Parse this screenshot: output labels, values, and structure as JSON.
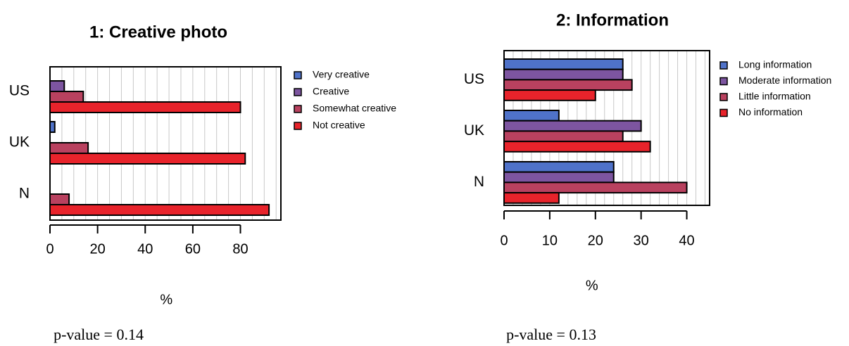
{
  "chart_data": [
    {
      "type": "bar",
      "orientation": "horizontal",
      "title": "1: Creative photo",
      "xlabel": "%",
      "annotation": "p-value = 0.14",
      "categories": [
        "US",
        "UK",
        "N"
      ],
      "series": [
        {
          "name": "Very creative",
          "color": "#4f72c9",
          "values": [
            0,
            2,
            0
          ]
        },
        {
          "name": "Creative",
          "color": "#7d55a0",
          "values": [
            6,
            0,
            0
          ]
        },
        {
          "name": "Somewhat creative",
          "color": "#b9415f",
          "values": [
            14,
            16,
            8
          ]
        },
        {
          "name": "Not creative",
          "color": "#e8232b",
          "values": [
            80,
            82,
            92
          ]
        }
      ],
      "xlim": [
        0,
        97
      ],
      "xticks": [
        0,
        20,
        40,
        60,
        80
      ],
      "xgrid": [
        5,
        10,
        15,
        20,
        25,
        30,
        35,
        40,
        45,
        50,
        55,
        60,
        65,
        70,
        75,
        80,
        85,
        90,
        95
      ],
      "legend": "right"
    },
    {
      "type": "bar",
      "orientation": "horizontal",
      "title": "2: Information",
      "xlabel": "%",
      "annotation": "p-value = 0.13",
      "categories": [
        "US",
        "UK",
        "N"
      ],
      "series": [
        {
          "name": "Long information",
          "color": "#4f72c9",
          "values": [
            26,
            12,
            24
          ]
        },
        {
          "name": "Moderate information",
          "color": "#7d55a0",
          "values": [
            26,
            30,
            24
          ]
        },
        {
          "name": "Little information",
          "color": "#b9415f",
          "values": [
            28,
            26,
            40
          ]
        },
        {
          "name": "No information",
          "color": "#e8232b",
          "values": [
            20,
            32,
            12
          ]
        }
      ],
      "xlim": [
        0,
        45
      ],
      "xticks": [
        0,
        10,
        20,
        30,
        40
      ],
      "xgrid": [
        2,
        4,
        6,
        8,
        10,
        12,
        14,
        16,
        18,
        20,
        22,
        24,
        26,
        28,
        30,
        32,
        34,
        36,
        38,
        40,
        42,
        44
      ],
      "legend": "right"
    }
  ]
}
